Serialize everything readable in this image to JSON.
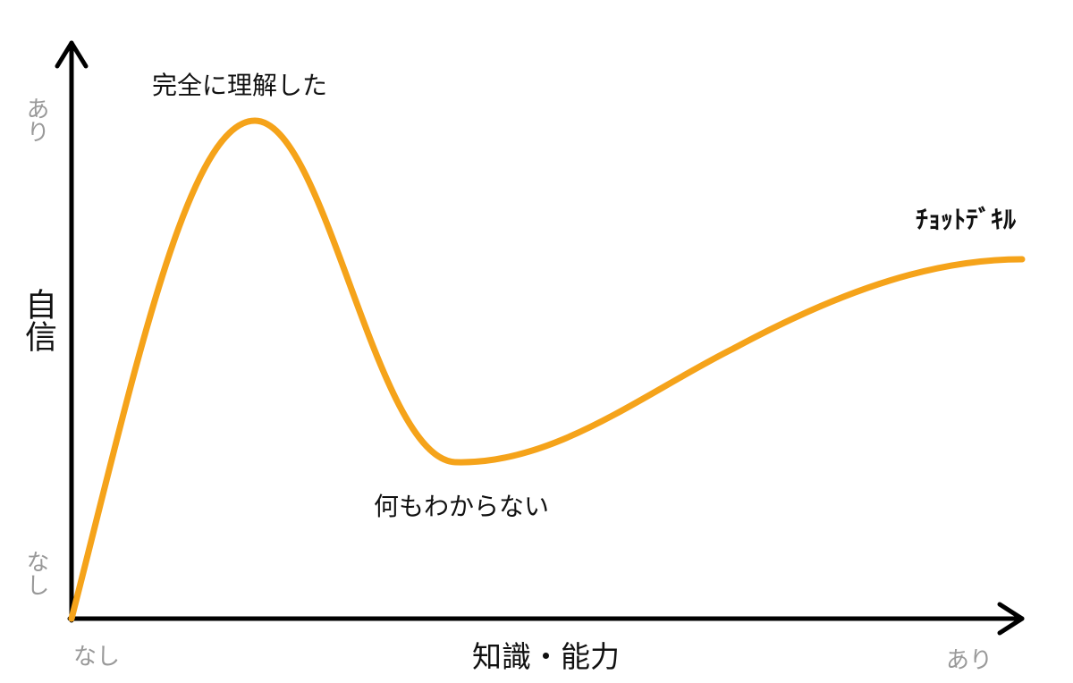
{
  "y_axis": {
    "title": "自信",
    "high": "あり",
    "low": "なし"
  },
  "x_axis": {
    "title": "知識・能力",
    "low": "なし",
    "high": "あり"
  },
  "annotations": {
    "peak": "完全に理解した",
    "trough": "何もわからない",
    "plateau": "ﾁｮｯﾄﾃﾞｷﾙ"
  }
}
